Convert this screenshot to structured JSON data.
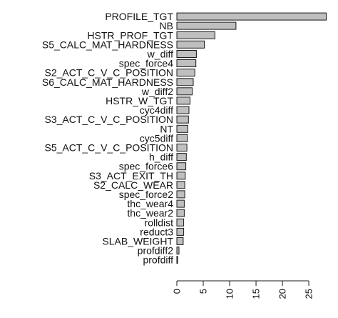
{
  "chart_data": {
    "type": "bar",
    "orientation": "horizontal",
    "title": "",
    "xlabel": "",
    "ylabel": "",
    "xlim": [
      0,
      28.5
    ],
    "x_ticks": [
      "0",
      "5",
      "10",
      "15",
      "20",
      "25"
    ],
    "grid": false,
    "categories": [
      "PROFILE_TGT",
      "NB",
      "HSTR_PROF_TGT",
      "S5_CALC_MAT_HARDNESS",
      "w_diff",
      "spec_force4",
      "S2_ACT_C_V_C_POSITION",
      "S6_CALC_MAT_HARDNESS",
      "w_diff2",
      "HSTR_W_TGT",
      "cyc4diff",
      "S3_ACT_C_V_C_POSITION",
      "NT",
      "cyc5diff",
      "S5_ACT_C_V_C_POSITION",
      "h_diff",
      "spec_force6",
      "S3_ACT_EXIT_TH",
      "S2_CALC_WEAR",
      "spec_force2",
      "thc_wear4",
      "thc_wear2",
      "rolldist",
      "reduct3",
      "SLAB_WEIGHT",
      "profdiff2",
      "profdiff"
    ],
    "values": [
      28.3,
      11.2,
      7.2,
      5.2,
      3.7,
      3.6,
      3.4,
      3.1,
      2.9,
      2.5,
      2.3,
      2.2,
      2.1,
      2.0,
      1.9,
      1.8,
      1.7,
      1.6,
      1.5,
      1.5,
      1.4,
      1.4,
      1.3,
      1.3,
      1.2,
      0.4,
      0.1
    ],
    "colors": {
      "bar_fill": "#bfbfbf",
      "bar_stroke": "#1a1a1a"
    }
  }
}
